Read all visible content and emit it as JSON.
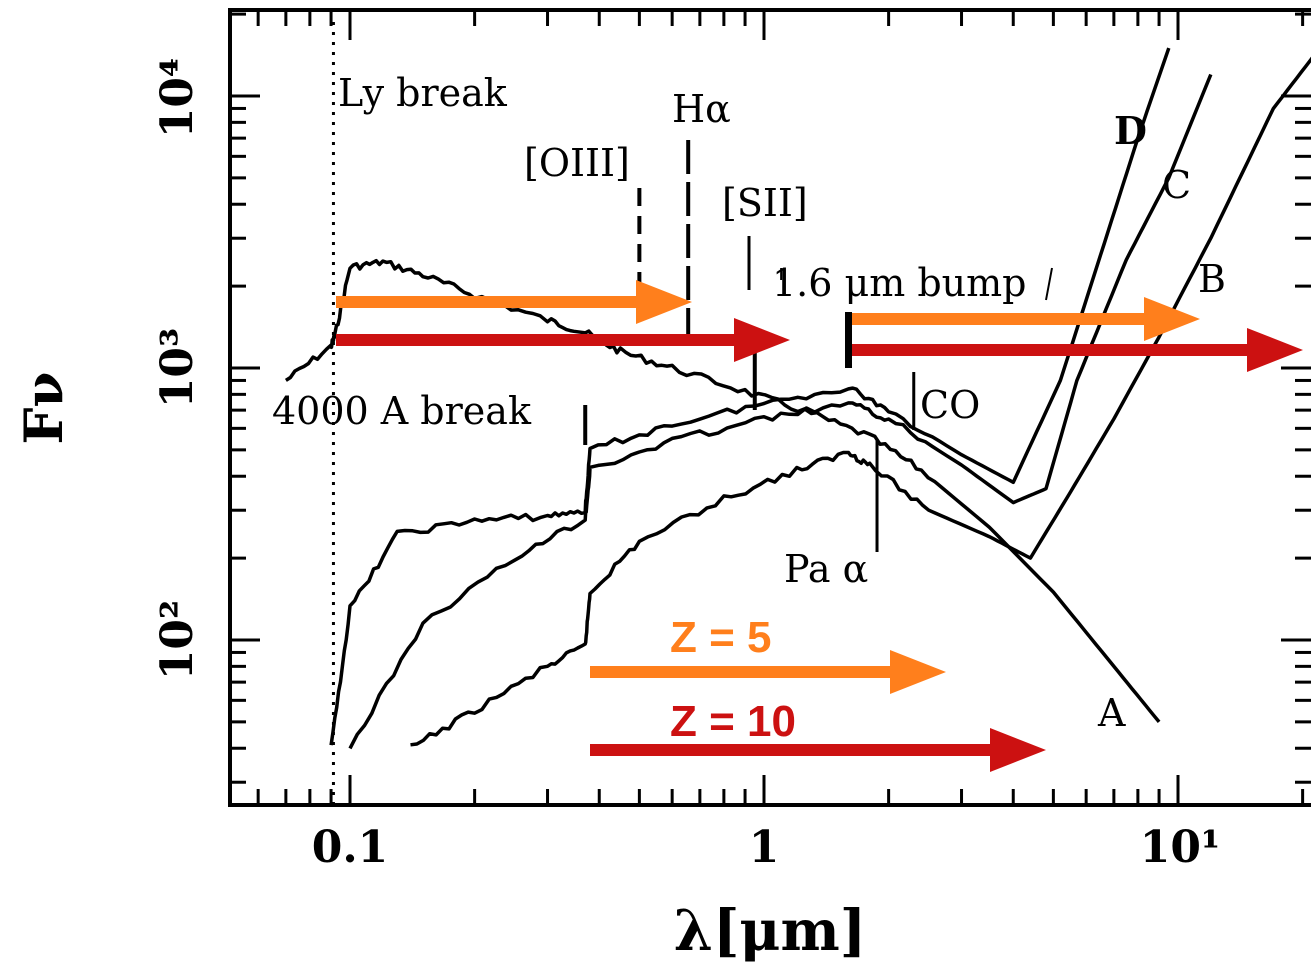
{
  "chart_data": {
    "type": "line",
    "title": "",
    "xlabel": "λ[μm]",
    "ylabel": "Fν",
    "x_scale": "log",
    "y_scale": "log",
    "xlim": [
      0.055,
      25
    ],
    "ylim": [
      40,
      18000
    ],
    "x_ticks": [
      {
        "value": 0.1,
        "label": "0.1"
      },
      {
        "value": 1,
        "label": "1"
      },
      {
        "value": 10,
        "label": "10¹"
      }
    ],
    "y_ticks": [
      {
        "value": 100,
        "label": "10²"
      },
      {
        "value": 1000,
        "label": "10³"
      },
      {
        "value": 10000,
        "label": "10⁴"
      }
    ],
    "series": [
      {
        "name": "A",
        "color": "#000000",
        "points": [
          [
            0.07,
            900
          ],
          [
            0.09,
            1200
          ],
          [
            0.092,
            1320
          ],
          [
            0.1,
            2350
          ],
          [
            0.12,
            2450
          ],
          [
            0.15,
            2200
          ],
          [
            0.2,
            1850
          ],
          [
            0.3,
            1500
          ],
          [
            0.37,
            1350
          ],
          [
            0.45,
            1150
          ],
          [
            0.6,
            1000
          ],
          [
            0.9,
            820
          ],
          [
            1.3,
            680
          ],
          [
            1.8,
            560
          ],
          [
            2.4,
            420
          ],
          [
            3.5,
            260
          ],
          [
            5,
            150
          ],
          [
            7,
            80
          ],
          [
            9,
            50
          ]
        ]
      },
      {
        "name": "B",
        "color": "#000000",
        "points": [
          [
            0.14,
            40
          ],
          [
            0.2,
            55
          ],
          [
            0.3,
            80
          ],
          [
            0.37,
            95
          ],
          [
            0.38,
            150
          ],
          [
            0.5,
            230
          ],
          [
            0.8,
            330
          ],
          [
            1.2,
            420
          ],
          [
            1.6,
            490
          ],
          [
            1.8,
            440
          ],
          [
            2.5,
            300
          ],
          [
            3.5,
            240
          ],
          [
            4.4,
            200
          ],
          [
            5.5,
            350
          ],
          [
            7,
            650
          ],
          [
            9,
            1300
          ],
          [
            12,
            3000
          ],
          [
            17,
            9000
          ],
          [
            22,
            15000
          ]
        ]
      },
      {
        "name": "C",
        "color": "#000000",
        "points": [
          [
            0.1,
            40
          ],
          [
            0.15,
            115
          ],
          [
            0.25,
            200
          ],
          [
            0.37,
            280
          ],
          [
            0.38,
            420
          ],
          [
            0.6,
            540
          ],
          [
            1,
            650
          ],
          [
            1.6,
            740
          ],
          [
            2,
            650
          ],
          [
            3,
            440
          ],
          [
            4,
            320
          ],
          [
            4.8,
            360
          ],
          [
            5.7,
            900
          ],
          [
            7.5,
            2500
          ],
          [
            9.5,
            5000
          ],
          [
            12,
            12000
          ]
        ]
      },
      {
        "name": "D",
        "color": "#000000",
        "points": [
          [
            0.09,
            40
          ],
          [
            0.1,
            130
          ],
          [
            0.13,
            245
          ],
          [
            0.2,
            275
          ],
          [
            0.3,
            285
          ],
          [
            0.37,
            300
          ],
          [
            0.38,
            500
          ],
          [
            0.6,
            620
          ],
          [
            1,
            740
          ],
          [
            1.6,
            850
          ],
          [
            2,
            700
          ],
          [
            3,
            480
          ],
          [
            4,
            380
          ],
          [
            5.2,
            900
          ],
          [
            6.5,
            2600
          ],
          [
            8,
            7000
          ],
          [
            9.5,
            15000
          ]
        ]
      }
    ],
    "annotations": {
      "ly_break": "Ly break",
      "oiii": "[OIII]",
      "halpha": "Hα",
      "sii": "[SII]",
      "bump": "1.6 μm bump",
      "balmer": "4000 A break",
      "co": "CO",
      "paalpha": "Pa α",
      "curve_a": "A",
      "curve_b": "B",
      "curve_c": "C",
      "curve_d": "D"
    },
    "redshift_labels": {
      "z5": "Z =  5",
      "z10": "Z =  10"
    },
    "grid": false,
    "legend": "none"
  },
  "colors": {
    "z5": "#ff7f1c",
    "z10": "#cc1111",
    "ink": "#000000"
  }
}
